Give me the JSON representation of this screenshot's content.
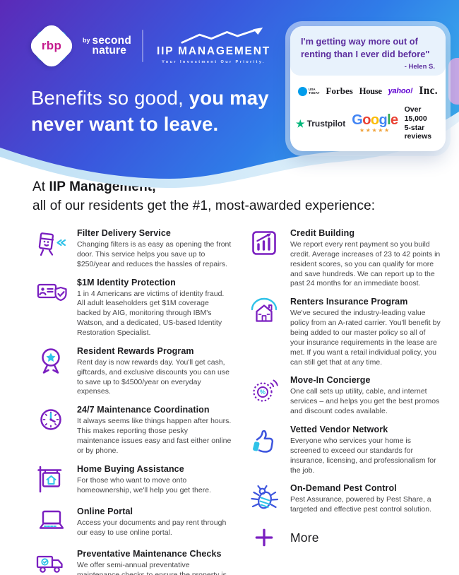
{
  "colors": {
    "gradient_start": "#5b2ab8",
    "gradient_mid": "#3a57dd",
    "gradient_end": "#38a6ec",
    "accent_purple": "#7a1fc0",
    "accent_cyan": "#2fc2e8",
    "accent_blue": "#3d55de",
    "quote_purple": "#5c2e9e",
    "trustpilot_green": "#00b67a",
    "star_gold": "#f0a33c",
    "yahoo_purple": "#5f01d1",
    "usatoday_blue": "#009ceb",
    "google_letter_colors": [
      "#4285F4",
      "#EA4335",
      "#FBBC05",
      "#4285F4",
      "#34A853",
      "#EA4335"
    ]
  },
  "header": {
    "rbp": {
      "badge": "rbp",
      "by": "by",
      "brand_line1": "second",
      "brand_line2": "nature"
    },
    "iip": {
      "name": "IIP MANAGEMENT",
      "tagline": "Your Investment Our Priority."
    },
    "headline": {
      "light": "Benefits so good, ",
      "bold_line1": "you may",
      "bold_line2": "never want to leave."
    }
  },
  "testimonial": {
    "quote_line1": "I'm getting way more out of",
    "quote_line2": "renting than I ever did before\"",
    "attribution": "- Helen S.",
    "usatoday_line1": "USA",
    "usatoday_line2": "TODAY",
    "forbes": "Forbes",
    "house": "House",
    "yahoo": "yahoo!",
    "inc": "Inc.",
    "trustpilot": "Trustpilot",
    "google": "Google",
    "stars": "★★★★★",
    "reviews_line1": "Over 15,000",
    "reviews_line2": "5-star reviews"
  },
  "intro": {
    "prefix": "At ",
    "bold": "IIP Management,",
    "line2": "all of our residents get the #1, most-awarded experience:"
  },
  "benefits": {
    "left": [
      {
        "icon": "filter-delivery",
        "title": "Filter Delivery Service",
        "description": "Changing filters is as easy as opening the front door. This service helps you save up to $250/year and reduces the hassles of repairs."
      },
      {
        "icon": "identity-shield",
        "title": "$1M Identity Protection",
        "description": "1 in 4 Americans are victims of identity fraud. All adult leaseholders get $1M coverage backed by AIG, monitoring through IBM's Watson, and a dedicated, US-based Identity Restoration Specialist."
      },
      {
        "icon": "award-ribbon",
        "title": "Resident Rewards Program",
        "description": "Rent day is now rewards day. You'll get cash, giftcards, and exclusive discounts you can use to save up to $4500/year on everyday expenses."
      },
      {
        "icon": "clock",
        "title": "24/7 Maintenance Coordination",
        "description": "It always seems like things happen after hours. This makes reporting those pesky maintenance issues easy and fast either online or by phone."
      },
      {
        "icon": "home-sign",
        "title": "Home Buying Assistance",
        "description": "For those who want to move onto homeownership, we'll help you get there."
      },
      {
        "icon": "laptop",
        "title": "Online Portal",
        "description": "Access your documents and pay rent through our easy to use online portal."
      },
      {
        "icon": "truck-check",
        "title": "Preventative Maintenance Checks",
        "description": "We offer semi-annual preventative maintenance checks to ensure the property is well maintained throughout the duration of your lease."
      }
    ],
    "right": [
      {
        "icon": "credit-chart",
        "title": "Credit Building",
        "description": "We report every rent payment so you build credit. Average increases of 23 to 42 points in resident scores, so you can qualify for more and save hundreds. We can report up to the past 24 months for an immediate boost."
      },
      {
        "icon": "house-insurance",
        "title": "Renters Insurance Program",
        "description": "We've secured the industry-leading value policy from an A-rated carrier. You'll benefit by being added to our master policy so all of your insurance requirements in the lease are met. If you want a retail individual policy, you can still get that at any time."
      },
      {
        "icon": "concierge-dial",
        "title": "Move-In Concierge",
        "description": "One call sets up utility, cable, and internet services – and helps you get the best promos and discount codes available."
      },
      {
        "icon": "thumbs-up",
        "title": "Vetted Vendor Network",
        "description": "Everyone who services your home is screened to exceed our standards for insurance, licensing, and professionalism for the job."
      },
      {
        "icon": "bug",
        "title": "On-Demand Pest Control",
        "description": "Pest Assurance, powered by Pest Share, a targeted and effective pest control solution."
      }
    ],
    "more": {
      "icon": "plus",
      "label": "More"
    }
  }
}
